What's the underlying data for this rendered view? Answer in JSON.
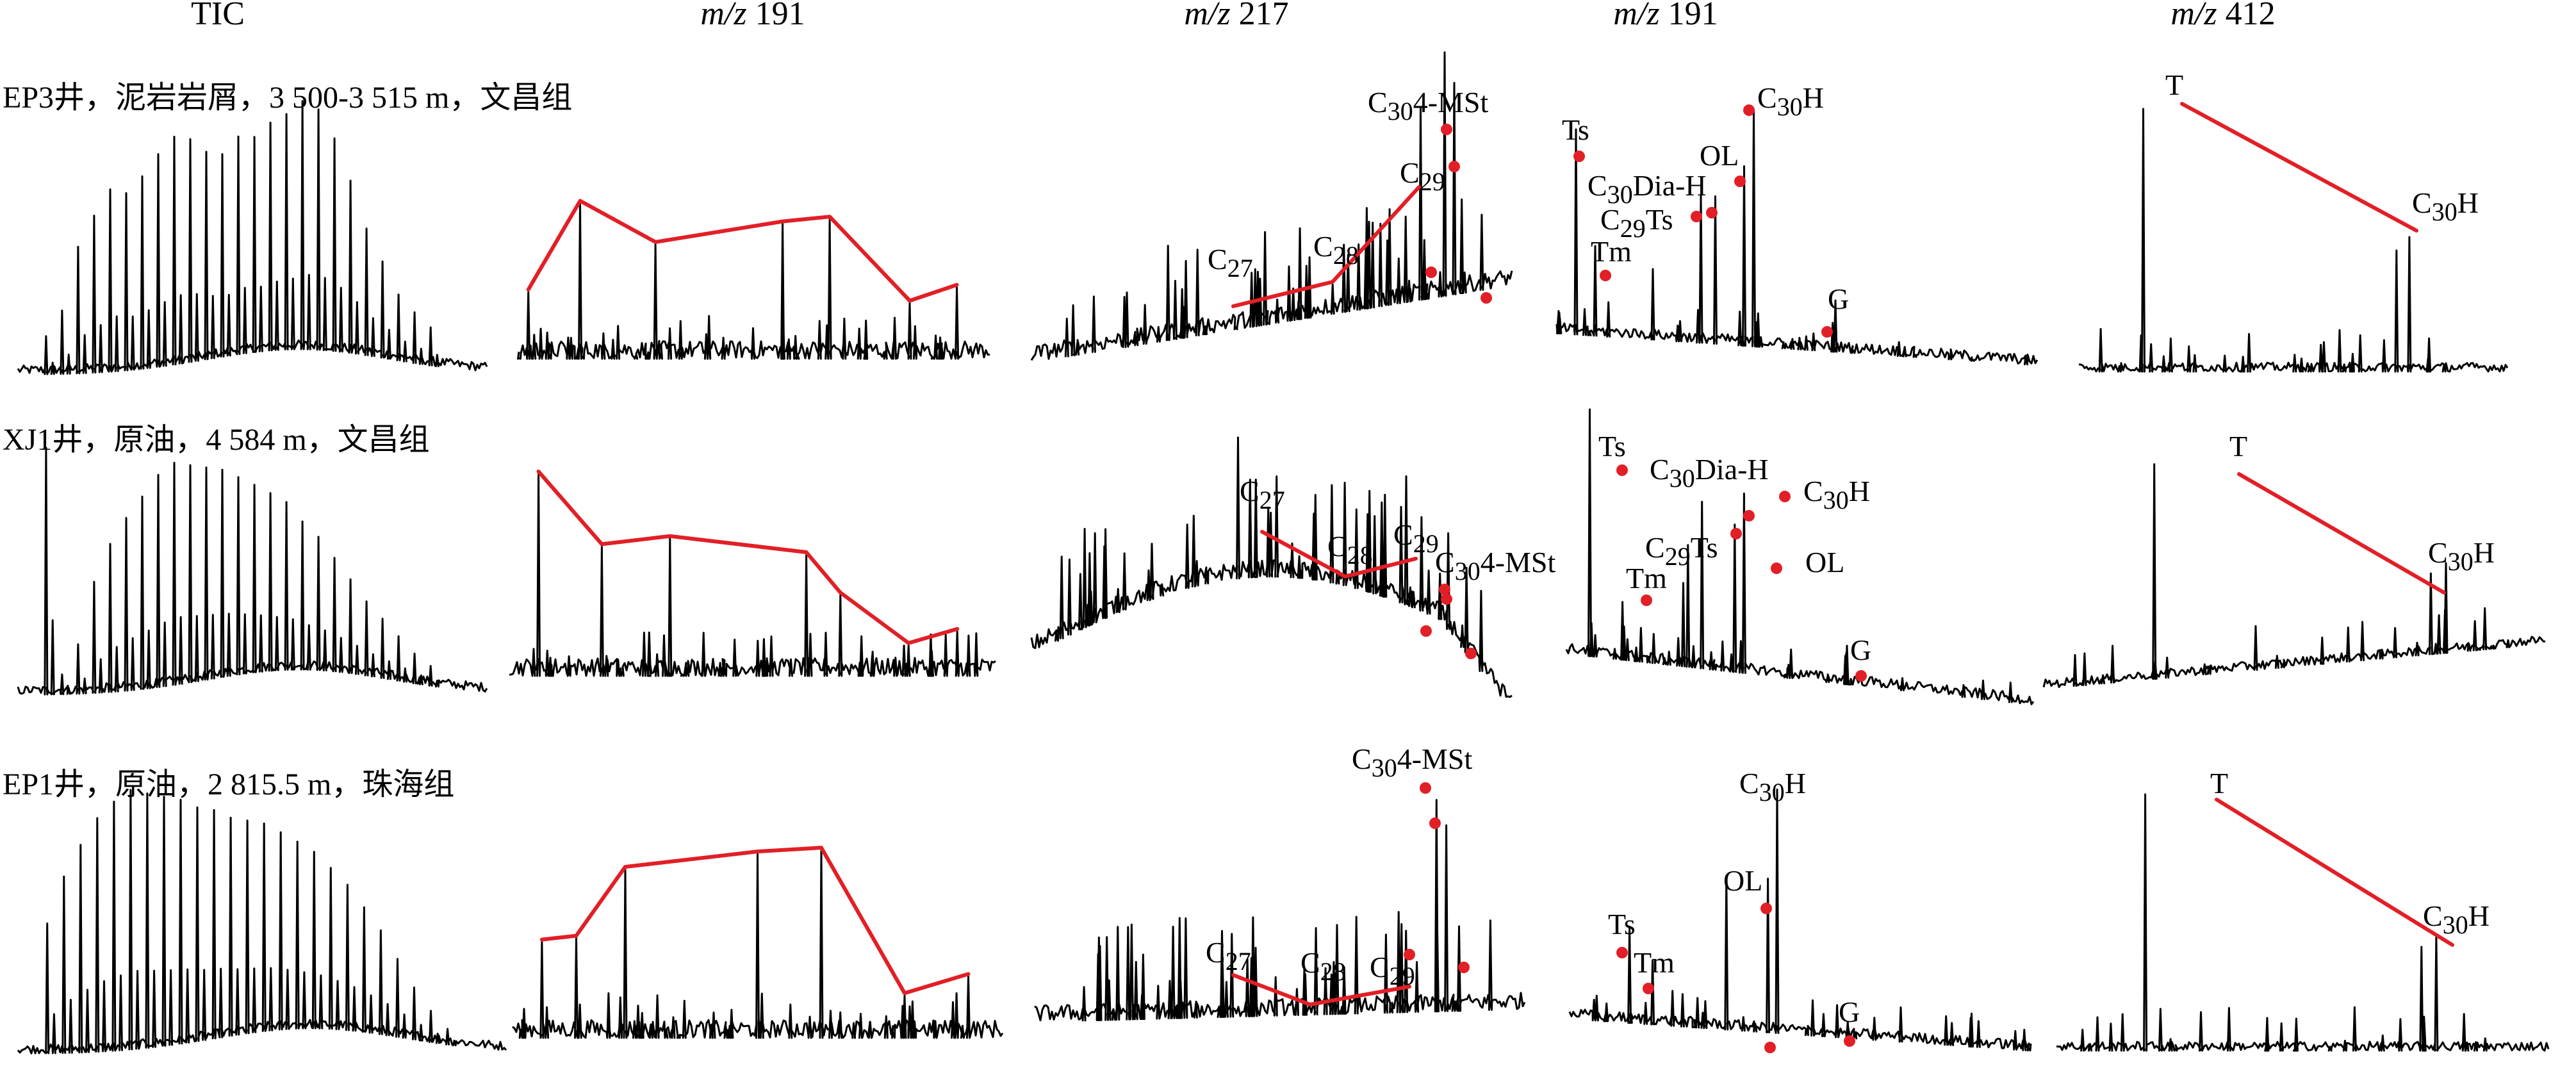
{
  "column_headers": [
    {
      "main": "TIC"
    },
    {
      "ital": "m/z",
      "rest": " 191"
    },
    {
      "ital": "m/z",
      "rest": " 217"
    },
    {
      "ital": "m/z",
      "rest": " 191"
    },
    {
      "ital": "m/z",
      "rest": " 412"
    }
  ],
  "row_labels": [
    "EP3井，泥岩岩屑，3 500-3 515 m，文昌组",
    "XJ1井，原油，4 584 m，文昌组",
    "EP1井，原油，2 815.5 m，珠海组"
  ],
  "peak_labels": {
    "C30_4MSt": {
      "sub": "30",
      "pre": "C",
      "post": "4-MSt"
    },
    "C29": {
      "pre": "C",
      "sub": "29",
      "post": ""
    },
    "C28": {
      "pre": "C",
      "sub": "28",
      "post": ""
    },
    "C27": {
      "pre": "C",
      "sub": "27",
      "post": ""
    },
    "Ts": "Ts",
    "Tm": "Tm",
    "OL": "OL",
    "G": "G",
    "C30H": {
      "pre": "C",
      "sub": "30",
      "post": "H"
    },
    "C30DiaH": {
      "pre": "C",
      "sub": "30",
      "post": "Dia-H"
    },
    "C29Ts": {
      "pre": "C",
      "sub": "29",
      "post": "Ts"
    },
    "T": "T"
  },
  "colors": {
    "trace": "#000000",
    "trend_line": "#e21f26",
    "marker": "#e21f26"
  },
  "chart_data": {
    "type": "line",
    "panels_layout": "3 rows × 5 columns of chromatograms",
    "rows": [
      {
        "sample": "EP3井，泥岩岩屑，3 500-3 515 m，文昌组",
        "TIC": {
          "pattern": "n-alkane series",
          "peak_rel_heights": [
            0.15,
            0.25,
            0.5,
            0.62,
            0.72,
            0.7,
            0.76,
            0.84,
            0.9,
            0.88,
            0.82,
            0.8,
            0.86,
            0.85,
            0.9,
            0.93,
            0.98,
            0.95,
            0.84,
            0.68,
            0.5,
            0.38,
            0.26,
            0.2,
            0.15
          ]
        },
        "m/z 191_terpanes": {
          "trend_rel_heights": [
            0.42,
            0.98,
            0.72,
            0.85,
            0.88,
            0.35,
            0.45
          ]
        },
        "m/z 217": {
          "steranes_trend_rel_heights": [
            0.35,
            0.4,
            0.45,
            0.82
          ],
          "labels": [
            "C27",
            "C28",
            "C29",
            "C30 4-MSt"
          ]
        },
        "m/z 191_hopanes": {
          "labels": [
            "Ts",
            "Tm",
            "C30Dia-H",
            "C29Ts",
            "OL",
            "C30H",
            "G"
          ]
        },
        "m/z 412": {
          "labels": [
            "T",
            "C30H"
          ]
        }
      },
      {
        "sample": "XJ1井，原油，4 584 m，文昌组",
        "TIC": {
          "pattern": "n-alkane series",
          "peak_rel_heights": [
            1.0,
            0.08,
            0.2,
            0.45,
            0.6,
            0.7,
            0.78,
            0.86,
            0.9,
            0.88,
            0.86,
            0.84,
            0.8,
            0.76,
            0.72,
            0.68,
            0.6,
            0.54,
            0.46,
            0.38,
            0.3,
            0.24,
            0.18,
            0.12,
            0.08
          ]
        },
        "m/z 191_terpanes": {
          "trend_rel_heights": [
            1.0,
            0.64,
            0.68,
            0.6,
            0.4,
            0.15,
            0.22
          ]
        },
        "m/z 217": {
          "steranes_trend_rel_heights": [
            0.68,
            0.5,
            0.55
          ],
          "labels": [
            "C27",
            "C28",
            "C29",
            "C30 4-MSt"
          ]
        },
        "m/z 191_hopanes": {
          "labels": [
            "Ts",
            "Tm",
            "C30Dia-H",
            "C29Ts",
            "C30H",
            "OL",
            "G"
          ]
        },
        "m/z 412": {
          "labels": [
            "T",
            "C30H"
          ]
        }
      },
      {
        "sample": "EP1井，原油，2 815.5 m，珠海组",
        "TIC": {
          "pattern": "n-alkane series",
          "peak_rel_heights": [
            0.5,
            0.68,
            0.8,
            0.9,
            0.96,
            1.0,
            0.98,
            0.96,
            0.94,
            0.9,
            0.88,
            0.84,
            0.82,
            0.8,
            0.76,
            0.72,
            0.68,
            0.62,
            0.56,
            0.48,
            0.4,
            0.3,
            0.2,
            0.12,
            0.06
          ]
        },
        "m/z 191_terpanes": {
          "trend_rel_heights": [
            0.5,
            0.52,
            0.88,
            0.96,
            0.98,
            0.22,
            0.32
          ]
        },
        "m/z 217": {
          "steranes_trend_rel_heights": [
            0.08,
            0.0,
            0.05
          ],
          "labels": [
            "C27",
            "C28",
            "C29",
            "C30 4-MSt"
          ]
        },
        "m/z 191_hopanes": {
          "labels": [
            "Ts",
            "Tm",
            "OL",
            "C30H",
            "G"
          ]
        },
        "m/z 412": {
          "labels": [
            "T",
            "C30H"
          ]
        }
      }
    ]
  }
}
